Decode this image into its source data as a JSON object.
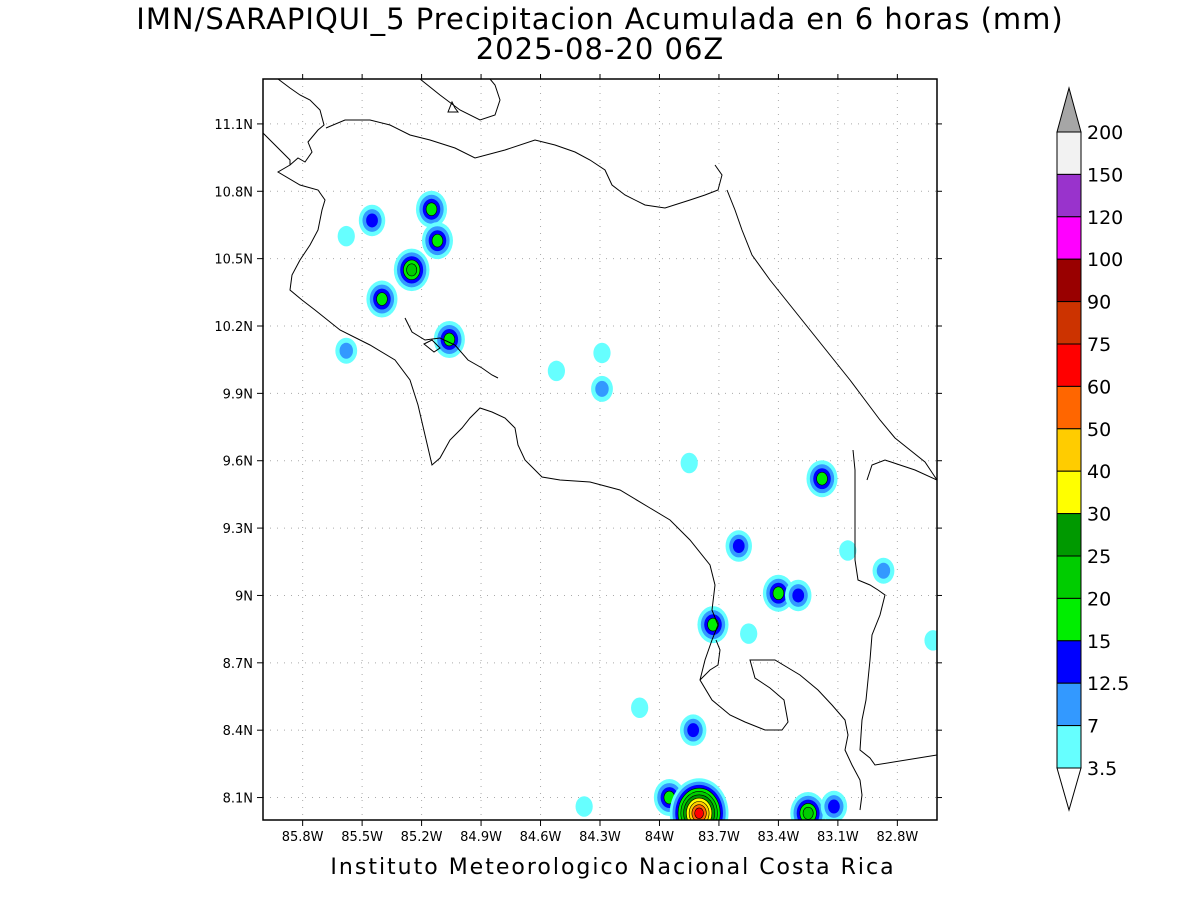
{
  "title": {
    "line1": "IMN/SARAPIQUI_5 Precipitacion Acumulada en 6 horas (mm)",
    "line2": "2025-08-20 06Z"
  },
  "footer": "Instituto Meteorologico Nacional Costa Rica",
  "map": {
    "lon_range": [
      -86.0,
      -82.6
    ],
    "lat_range": [
      8.0,
      11.3
    ],
    "x_ticks": [
      "85.8W",
      "85.5W",
      "85.2W",
      "84.9W",
      "84.6W",
      "84.3W",
      "84W",
      "83.7W",
      "83.4W",
      "83.1W",
      "82.8W"
    ],
    "x_tick_values": [
      -85.8,
      -85.5,
      -85.2,
      -84.9,
      -84.6,
      -84.3,
      -84.0,
      -83.7,
      -83.4,
      -83.1,
      -82.8
    ],
    "y_ticks": [
      "8.1N",
      "8.4N",
      "8.7N",
      "9N",
      "9.3N",
      "9.6N",
      "9.9N",
      "10.2N",
      "10.5N",
      "10.8N",
      "11.1N"
    ],
    "y_tick_values": [
      8.1,
      8.4,
      8.7,
      9.0,
      9.3,
      9.6,
      9.9,
      10.2,
      10.5,
      10.8,
      11.1
    ],
    "grid": true
  },
  "colorbar": {
    "levels": [
      "3.5",
      "7",
      "12.5",
      "15",
      "20",
      "25",
      "30",
      "40",
      "50",
      "60",
      "75",
      "90",
      "100",
      "120",
      "150",
      "200"
    ],
    "colors": [
      "#66ffff",
      "#3399ff",
      "#0000ff",
      "#00ee00",
      "#00cc00",
      "#009900",
      "#ffff00",
      "#ffcc00",
      "#ff6600",
      "#ff0000",
      "#cc3300",
      "#990000",
      "#ff00ff",
      "#9933cc",
      "#f2f2f2",
      "#a6a6a6"
    ],
    "top_triangle_color": "#a6a6a6",
    "bottom_triangle_color": "#ffffff"
  },
  "precip_cells": [
    {
      "lon": -85.45,
      "lat": 10.67,
      "levels": 3
    },
    {
      "lon": -85.15,
      "lat": 10.72,
      "levels": 4
    },
    {
      "lon": -85.12,
      "lat": 10.58,
      "levels": 4
    },
    {
      "lon": -85.25,
      "lat": 10.45,
      "levels": 5
    },
    {
      "lon": -85.4,
      "lat": 10.32,
      "levels": 4
    },
    {
      "lon": -85.58,
      "lat": 10.6,
      "levels": 1
    },
    {
      "lon": -85.58,
      "lat": 10.09,
      "levels": 2
    },
    {
      "lon": -85.06,
      "lat": 10.14,
      "levels": 4
    },
    {
      "lon": -84.29,
      "lat": 9.92,
      "levels": 2
    },
    {
      "lon": -84.52,
      "lat": 10.0,
      "levels": 1
    },
    {
      "lon": -84.29,
      "lat": 10.08,
      "levels": 1
    },
    {
      "lon": -83.85,
      "lat": 9.59,
      "levels": 1
    },
    {
      "lon": -83.18,
      "lat": 9.52,
      "levels": 4
    },
    {
      "lon": -83.6,
      "lat": 9.22,
      "levels": 3
    },
    {
      "lon": -83.05,
      "lat": 9.2,
      "levels": 1
    },
    {
      "lon": -82.87,
      "lat": 9.11,
      "levels": 2
    },
    {
      "lon": -83.4,
      "lat": 9.01,
      "levels": 4
    },
    {
      "lon": -83.3,
      "lat": 9.0,
      "levels": 3
    },
    {
      "lon": -83.73,
      "lat": 8.87,
      "levels": 4
    },
    {
      "lon": -83.55,
      "lat": 8.83,
      "levels": 1
    },
    {
      "lon": -83.83,
      "lat": 8.4,
      "levels": 3
    },
    {
      "lon": -84.1,
      "lat": 8.5,
      "levels": 1
    },
    {
      "lon": -82.62,
      "lat": 8.8,
      "levels": 1
    },
    {
      "lon": -84.38,
      "lat": 8.06,
      "levels": 1
    },
    {
      "lon": -83.95,
      "lat": 8.1,
      "levels": 4
    },
    {
      "lon": -83.8,
      "lat": 8.03,
      "levels": 10
    },
    {
      "lon": -83.25,
      "lat": 8.03,
      "levels": 5
    },
    {
      "lon": -83.12,
      "lat": 8.06,
      "levels": 3
    }
  ]
}
